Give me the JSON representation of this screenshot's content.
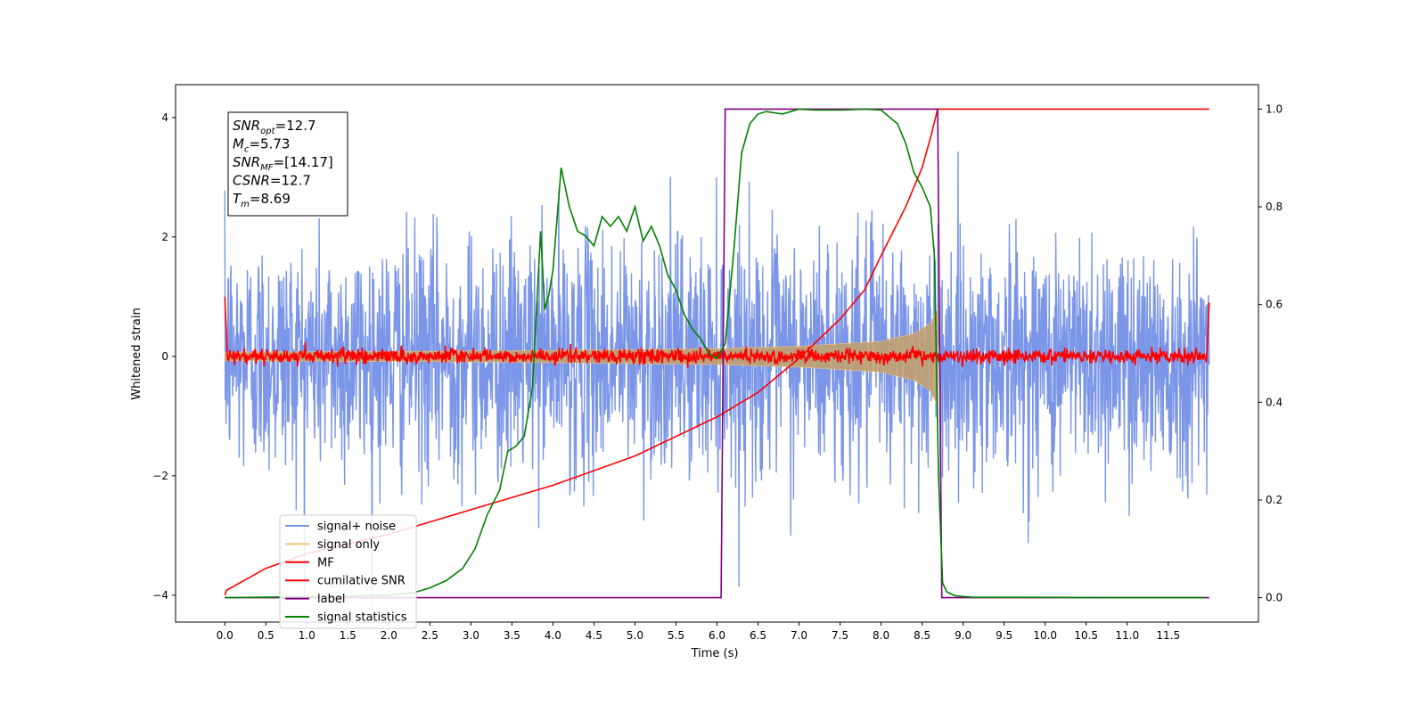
{
  "chart_data": {
    "type": "line",
    "xlabel": "Time (s)",
    "ylabel": "Whitened strain",
    "xlim": [
      -0.6,
      12.6
    ],
    "ylim": [
      -4.45,
      4.55
    ],
    "y2lim": [
      -0.05,
      1.05
    ],
    "xticks": [
      "0.0",
      "0.5",
      "1.0",
      "1.5",
      "2.0",
      "2.5",
      "3.0",
      "3.5",
      "4.0",
      "4.5",
      "5.0",
      "5.5",
      "6.0",
      "6.5",
      "7.0",
      "7.5",
      "8.0",
      "8.5",
      "9.0",
      "9.5",
      "10.0",
      "10.5",
      "11.0",
      "11.5"
    ],
    "yticks": [
      "−4",
      "−2",
      "0",
      "2",
      "4"
    ],
    "y2ticks": [
      "0.0",
      "0.2",
      "0.4",
      "0.6",
      "0.8",
      "1.0"
    ],
    "grid": false,
    "legend_position": "lower-left",
    "annotation_box": {
      "lines": [
        {
          "base": "SNR",
          "sub": "opt",
          "rest": "=12.7"
        },
        {
          "base": "M",
          "sub": "c",
          "rest": "=5.73"
        },
        {
          "base": "SNR",
          "sub": "MF",
          "rest": "=[14.17]"
        },
        {
          "base": "CSNR",
          "sub": "",
          "rest": "=12.7"
        },
        {
          "base": "T",
          "sub": "m",
          "rest": "=8.69"
        }
      ]
    },
    "series": [
      {
        "name": "signal+ noise",
        "color": "#7b96e8",
        "axis": "left",
        "kind": "noise",
        "duration_s": 12.0,
        "sigma": 1.0
      },
      {
        "name": "signal only",
        "color": "#f5c27a",
        "axis": "left",
        "kind": "chirp_envelope",
        "envelope": {
          "t": [
            0,
            2,
            4,
            6,
            7,
            8,
            8.4,
            8.6,
            8.69,
            8.7,
            12
          ],
          "amp": [
            0.07,
            0.08,
            0.1,
            0.13,
            0.17,
            0.25,
            0.38,
            0.55,
            0.8,
            0,
            0
          ]
        }
      },
      {
        "name": "MF",
        "color": "#ff0000",
        "axis": "left",
        "kind": "mf_noise",
        "sigma": 0.06
      },
      {
        "name": "cumilative SNR",
        "color": "#ff0000",
        "axis": "right",
        "t": [
          0.0,
          0.02,
          0.5,
          1.0,
          2.0,
          3.0,
          4.0,
          5.0,
          6.0,
          6.5,
          7.0,
          7.5,
          7.8,
          8.0,
          8.3,
          8.5,
          8.6,
          8.69,
          12.0
        ],
        "y": [
          0.005,
          0.015,
          0.06,
          0.09,
          0.13,
          0.18,
          0.23,
          0.29,
          0.37,
          0.42,
          0.49,
          0.57,
          0.63,
          0.7,
          0.8,
          0.88,
          0.94,
          1.0,
          1.0
        ]
      },
      {
        "name": "label",
        "color": "#800080",
        "axis": "right",
        "t": [
          0.0,
          6.05,
          6.1,
          8.69,
          8.74,
          12.0
        ],
        "y": [
          0.0,
          0.0,
          1.0,
          1.0,
          0.0,
          0.0
        ]
      },
      {
        "name": "signal statistics",
        "color": "#008000",
        "axis": "right",
        "t": [
          0.0,
          1.0,
          2.0,
          2.3,
          2.5,
          2.7,
          2.9,
          3.05,
          3.2,
          3.35,
          3.45,
          3.55,
          3.65,
          3.75,
          3.85,
          3.9,
          3.95,
          4.0,
          4.1,
          4.2,
          4.3,
          4.4,
          4.5,
          4.6,
          4.7,
          4.8,
          4.9,
          5.0,
          5.1,
          5.2,
          5.3,
          5.4,
          5.5,
          5.6,
          5.7,
          5.8,
          5.9,
          6.0,
          6.1,
          6.2,
          6.3,
          6.4,
          6.5,
          6.6,
          6.8,
          7.0,
          7.2,
          7.5,
          7.8,
          8.0,
          8.2,
          8.3,
          8.4,
          8.5,
          8.55,
          8.6,
          8.65,
          8.7,
          8.75,
          8.8,
          8.9,
          9.1,
          11.0,
          11.95
        ],
        "y": [
          0.0,
          0.002,
          0.005,
          0.01,
          0.02,
          0.035,
          0.06,
          0.1,
          0.17,
          0.22,
          0.3,
          0.31,
          0.33,
          0.43,
          0.75,
          0.59,
          0.62,
          0.67,
          0.88,
          0.8,
          0.75,
          0.74,
          0.72,
          0.78,
          0.76,
          0.78,
          0.75,
          0.8,
          0.73,
          0.76,
          0.72,
          0.66,
          0.63,
          0.58,
          0.55,
          0.53,
          0.5,
          0.49,
          0.52,
          0.7,
          0.91,
          0.97,
          0.99,
          0.995,
          0.99,
          1.0,
          0.998,
          0.998,
          1.0,
          0.998,
          0.97,
          0.93,
          0.87,
          0.84,
          0.82,
          0.8,
          0.7,
          0.25,
          0.03,
          0.012,
          0.004,
          0.001,
          0.0,
          0.0
        ]
      }
    ]
  }
}
